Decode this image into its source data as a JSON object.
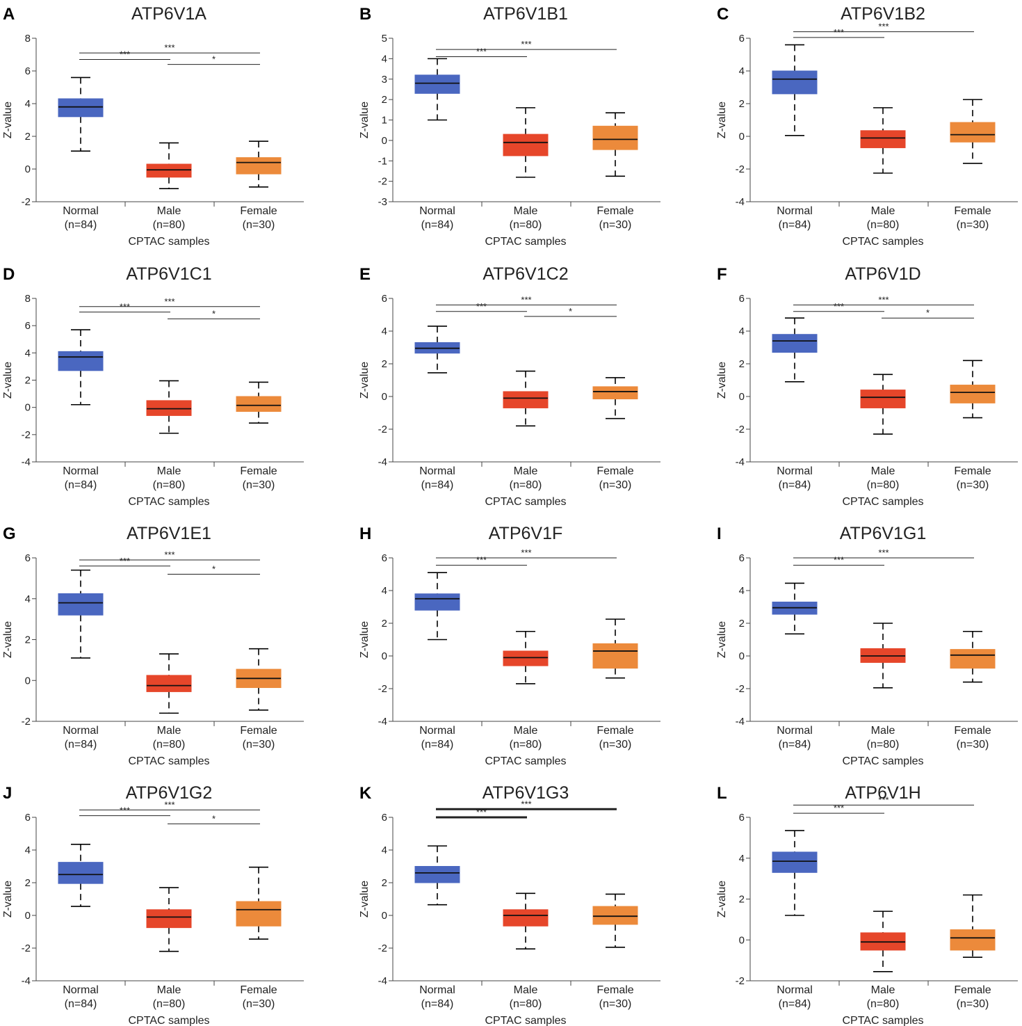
{
  "figure": {
    "colors": {
      "normal": "#4a67c0",
      "male": "#e6462a",
      "female": "#ec8a3b"
    },
    "ylabel": "Z-value",
    "xlabel": "CPTAC samples",
    "categories": [
      "Normal",
      "Male",
      "Female"
    ],
    "sample_sizes": [
      "(n=84)",
      "(n=80)",
      "(n=30)"
    ]
  },
  "chart_data": [
    {
      "panel": "A",
      "type": "boxplot",
      "title": "ATP6V1A",
      "ylim": [
        -2,
        8
      ],
      "yticks": [
        -2,
        0,
        2,
        4,
        6,
        8
      ],
      "boxes": [
        {
          "name": "Normal",
          "whisker_low": 1.1,
          "q1": 3.2,
          "median": 3.8,
          "q3": 4.3,
          "whisker_high": 5.6
        },
        {
          "name": "Male",
          "whisker_low": -1.2,
          "q1": -0.5,
          "median": -0.05,
          "q3": 0.3,
          "whisker_high": 1.6
        },
        {
          "name": "Female",
          "whisker_low": -1.1,
          "q1": -0.3,
          "median": 0.4,
          "q3": 0.7,
          "whisker_high": 1.7
        }
      ],
      "significance": [
        {
          "from": 0,
          "to": 2,
          "label": "***",
          "y": 7.1
        },
        {
          "from": 0,
          "to": 1,
          "label": "***",
          "y": 6.7
        },
        {
          "from": 1,
          "to": 2,
          "label": "*",
          "y": 6.4
        }
      ]
    },
    {
      "panel": "B",
      "type": "boxplot",
      "title": "ATP6V1B1",
      "ylim": [
        -3,
        5
      ],
      "yticks": [
        -3,
        -2,
        -1,
        0,
        1,
        2,
        3,
        4,
        5
      ],
      "boxes": [
        {
          "name": "Normal",
          "whisker_low": 1.0,
          "q1": 2.3,
          "median": 2.8,
          "q3": 3.2,
          "whisker_high": 4.0
        },
        {
          "name": "Male",
          "whisker_low": -1.8,
          "q1": -0.75,
          "median": -0.1,
          "q3": 0.3,
          "whisker_high": 1.6
        },
        {
          "name": "Female",
          "whisker_low": -1.75,
          "q1": -0.45,
          "median": 0.05,
          "q3": 0.7,
          "whisker_high": 1.35
        }
      ],
      "significance": [
        {
          "from": 0,
          "to": 2,
          "label": "***",
          "y": 4.45
        },
        {
          "from": 0,
          "to": 1,
          "label": "***",
          "y": 4.1
        }
      ]
    },
    {
      "panel": "C",
      "type": "boxplot",
      "title": "ATP6V1B2",
      "ylim": [
        -4,
        6
      ],
      "yticks": [
        -4,
        -2,
        0,
        2,
        4,
        6
      ],
      "boxes": [
        {
          "name": "Normal",
          "whisker_low": 0.05,
          "q1": 2.6,
          "median": 3.5,
          "q3": 4.0,
          "whisker_high": 5.6
        },
        {
          "name": "Male",
          "whisker_low": -2.25,
          "q1": -0.7,
          "median": -0.1,
          "q3": 0.35,
          "whisker_high": 1.75
        },
        {
          "name": "Female",
          "whisker_low": -1.65,
          "q1": -0.35,
          "median": 0.1,
          "q3": 0.85,
          "whisker_high": 2.25
        }
      ],
      "significance": [
        {
          "from": 0,
          "to": 2,
          "label": "***",
          "y": 6.4
        },
        {
          "from": 0,
          "to": 1,
          "label": "***",
          "y": 6.05
        }
      ]
    },
    {
      "panel": "D",
      "type": "boxplot",
      "title": "ATP6V1C1",
      "ylim": [
        -4,
        8
      ],
      "yticks": [
        -4,
        -2,
        0,
        2,
        4,
        6,
        8
      ],
      "boxes": [
        {
          "name": "Normal",
          "whisker_low": 0.2,
          "q1": 2.7,
          "median": 3.7,
          "q3": 4.1,
          "whisker_high": 5.7
        },
        {
          "name": "Male",
          "whisker_low": -1.9,
          "q1": -0.6,
          "median": -0.1,
          "q3": 0.5,
          "whisker_high": 1.95
        },
        {
          "name": "Female",
          "whisker_low": -1.15,
          "q1": -0.3,
          "median": 0.15,
          "q3": 0.8,
          "whisker_high": 1.85
        }
      ],
      "significance": [
        {
          "from": 0,
          "to": 2,
          "label": "***",
          "y": 7.4
        },
        {
          "from": 0,
          "to": 1,
          "label": "***",
          "y": 7.0
        },
        {
          "from": 1,
          "to": 2,
          "label": "*",
          "y": 6.5
        }
      ]
    },
    {
      "panel": "E",
      "type": "boxplot",
      "title": "ATP6V1C2",
      "ylim": [
        -4,
        6
      ],
      "yticks": [
        -4,
        -2,
        0,
        2,
        4,
        6
      ],
      "boxes": [
        {
          "name": "Normal",
          "whisker_low": 1.45,
          "q1": 2.65,
          "median": 2.95,
          "q3": 3.3,
          "whisker_high": 4.3
        },
        {
          "name": "Male",
          "whisker_low": -1.8,
          "q1": -0.7,
          "median": -0.1,
          "q3": 0.3,
          "whisker_high": 1.55
        },
        {
          "name": "Female",
          "whisker_low": -1.35,
          "q1": -0.15,
          "median": 0.3,
          "q3": 0.6,
          "whisker_high": 1.15
        }
      ],
      "significance": [
        {
          "from": 0,
          "to": 2,
          "label": "***",
          "y": 5.6
        },
        {
          "from": 0,
          "to": 1,
          "label": "***",
          "y": 5.2
        },
        {
          "from": 1,
          "to": 2,
          "label": "*",
          "y": 4.9
        }
      ]
    },
    {
      "panel": "F",
      "type": "boxplot",
      "title": "ATP6V1D",
      "ylim": [
        -4,
        6
      ],
      "yticks": [
        -4,
        -2,
        0,
        2,
        4,
        6
      ],
      "boxes": [
        {
          "name": "Normal",
          "whisker_low": 0.9,
          "q1": 2.7,
          "median": 3.4,
          "q3": 3.8,
          "whisker_high": 4.8
        },
        {
          "name": "Male",
          "whisker_low": -2.3,
          "q1": -0.7,
          "median": -0.05,
          "q3": 0.4,
          "whisker_high": 1.35
        },
        {
          "name": "Female",
          "whisker_low": -1.3,
          "q1": -0.4,
          "median": 0.25,
          "q3": 0.7,
          "whisker_high": 2.2
        }
      ],
      "significance": [
        {
          "from": 0,
          "to": 2,
          "label": "***",
          "y": 5.6
        },
        {
          "from": 0,
          "to": 1,
          "label": "***",
          "y": 5.2
        },
        {
          "from": 1,
          "to": 2,
          "label": "*",
          "y": 4.8
        }
      ]
    },
    {
      "panel": "G",
      "type": "boxplot",
      "title": "ATP6V1E1",
      "ylim": [
        -2,
        6
      ],
      "yticks": [
        -2,
        0,
        2,
        4,
        6
      ],
      "boxes": [
        {
          "name": "Normal",
          "whisker_low": 1.1,
          "q1": 3.2,
          "median": 3.8,
          "q3": 4.25,
          "whisker_high": 5.4
        },
        {
          "name": "Male",
          "whisker_low": -1.6,
          "q1": -0.55,
          "median": -0.25,
          "q3": 0.25,
          "whisker_high": 1.3
        },
        {
          "name": "Female",
          "whisker_low": -1.45,
          "q1": -0.35,
          "median": 0.1,
          "q3": 0.55,
          "whisker_high": 1.55
        }
      ],
      "significance": [
        {
          "from": 0,
          "to": 2,
          "label": "***",
          "y": 5.9
        },
        {
          "from": 0,
          "to": 1,
          "label": "***",
          "y": 5.6
        },
        {
          "from": 1,
          "to": 2,
          "label": "*",
          "y": 5.2
        }
      ]
    },
    {
      "panel": "H",
      "type": "boxplot",
      "title": "ATP6V1F",
      "ylim": [
        -4,
        6
      ],
      "yticks": [
        -4,
        -2,
        0,
        2,
        4,
        6
      ],
      "boxes": [
        {
          "name": "Normal",
          "whisker_low": 1.0,
          "q1": 2.8,
          "median": 3.5,
          "q3": 3.8,
          "whisker_high": 5.1
        },
        {
          "name": "Male",
          "whisker_low": -1.7,
          "q1": -0.6,
          "median": -0.1,
          "q3": 0.3,
          "whisker_high": 1.5
        },
        {
          "name": "Female",
          "whisker_low": -1.35,
          "q1": -0.75,
          "median": 0.3,
          "q3": 0.75,
          "whisker_high": 2.25
        }
      ],
      "significance": [
        {
          "from": 0,
          "to": 2,
          "label": "***",
          "y": 6.0
        },
        {
          "from": 0,
          "to": 1,
          "label": "***",
          "y": 5.55
        }
      ]
    },
    {
      "panel": "I",
      "type": "boxplot",
      "title": "ATP6V1G1",
      "ylim": [
        -4,
        6
      ],
      "yticks": [
        -4,
        -2,
        0,
        2,
        4,
        6
      ],
      "boxes": [
        {
          "name": "Normal",
          "whisker_low": 1.35,
          "q1": 2.55,
          "median": 2.95,
          "q3": 3.3,
          "whisker_high": 4.45
        },
        {
          "name": "Male",
          "whisker_low": -1.95,
          "q1": -0.4,
          "median": 0.0,
          "q3": 0.45,
          "whisker_high": 2.0
        },
        {
          "name": "Female",
          "whisker_low": -1.6,
          "q1": -0.75,
          "median": 0.05,
          "q3": 0.4,
          "whisker_high": 1.5
        }
      ],
      "significance": [
        {
          "from": 0,
          "to": 2,
          "label": "***",
          "y": 6.0
        },
        {
          "from": 0,
          "to": 1,
          "label": "***",
          "y": 5.55
        }
      ]
    },
    {
      "panel": "J",
      "type": "boxplot",
      "title": "ATP6V1G2",
      "ylim": [
        -4,
        6
      ],
      "yticks": [
        -4,
        -2,
        0,
        2,
        4,
        6
      ],
      "boxes": [
        {
          "name": "Normal",
          "whisker_low": 0.55,
          "q1": 1.95,
          "median": 2.5,
          "q3": 3.25,
          "whisker_high": 4.35
        },
        {
          "name": "Male",
          "whisker_low": -2.2,
          "q1": -0.75,
          "median": -0.1,
          "q3": 0.35,
          "whisker_high": 1.7
        },
        {
          "name": "Female",
          "whisker_low": -1.45,
          "q1": -0.65,
          "median": 0.35,
          "q3": 0.85,
          "whisker_high": 2.95
        }
      ],
      "significance": [
        {
          "from": 0,
          "to": 2,
          "label": "***",
          "y": 6.45
        },
        {
          "from": 0,
          "to": 1,
          "label": "***",
          "y": 6.1
        },
        {
          "from": 1,
          "to": 2,
          "label": "*",
          "y": 5.6
        }
      ]
    },
    {
      "panel": "K",
      "type": "boxplot",
      "title": "ATP6V1G3",
      "ylim": [
        -4,
        6
      ],
      "yticks": [
        -4,
        -2,
        0,
        2,
        4,
        6
      ],
      "boxes": [
        {
          "name": "Normal",
          "whisker_low": 0.65,
          "q1": 2.0,
          "median": 2.6,
          "q3": 3.0,
          "whisker_high": 4.25
        },
        {
          "name": "Male",
          "whisker_low": -2.05,
          "q1": -0.65,
          "median": 0.0,
          "q3": 0.35,
          "whisker_high": 1.35
        },
        {
          "name": "Female",
          "whisker_low": -1.95,
          "q1": -0.55,
          "median": -0.05,
          "q3": 0.55,
          "whisker_high": 1.3
        }
      ],
      "significance": [
        {
          "from": 0,
          "to": 2,
          "label": "***",
          "y": 6.5,
          "bold": true
        },
        {
          "from": 0,
          "to": 1,
          "label": "***",
          "y": 6.0,
          "bold": true
        }
      ]
    },
    {
      "panel": "L",
      "type": "boxplot",
      "title": "ATP6V1H",
      "ylim": [
        -2,
        6
      ],
      "yticks": [
        -2,
        0,
        2,
        4,
        6
      ],
      "boxes": [
        {
          "name": "Normal",
          "whisker_low": 1.2,
          "q1": 3.3,
          "median": 3.85,
          "q3": 4.3,
          "whisker_high": 5.35
        },
        {
          "name": "Male",
          "whisker_low": -1.55,
          "q1": -0.5,
          "median": -0.1,
          "q3": 0.35,
          "whisker_high": 1.4
        },
        {
          "name": "Female",
          "whisker_low": -0.85,
          "q1": -0.5,
          "median": 0.1,
          "q3": 0.5,
          "whisker_high": 2.2
        }
      ],
      "significance": [
        {
          "from": 0,
          "to": 2,
          "label": "***",
          "y": 6.6
        },
        {
          "from": 0,
          "to": 1,
          "label": "***",
          "y": 6.2
        }
      ]
    }
  ]
}
